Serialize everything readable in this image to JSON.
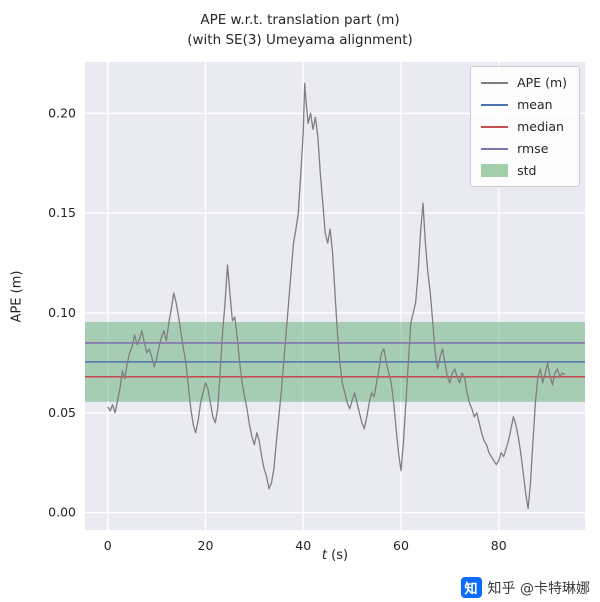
{
  "figure": {
    "title_line1": "APE w.r.t. translation part (m)",
    "title_line2": "(with SE(3) Umeyama alignment)",
    "ylabel": "APE (m)",
    "xlabel_var": "t",
    "xlabel_unit": " (s)"
  },
  "legend": {
    "entries": [
      {
        "label": "APE (m)",
        "swatch": "line",
        "color": "#7f7f7f"
      },
      {
        "label": "mean",
        "swatch": "line",
        "color": "#4c72b0"
      },
      {
        "label": "median",
        "swatch": "line",
        "color": "#c44e52"
      },
      {
        "label": "rmse",
        "swatch": "line",
        "color": "#8172b2"
      },
      {
        "label": "std",
        "swatch": "patch",
        "color": "#55a868"
      }
    ]
  },
  "watermark": {
    "logo_glyph": "知",
    "text": "知乎 @卡特琳娜",
    "logo_color": "#0a6cff"
  },
  "chart_data": {
    "type": "line",
    "title": "APE w.r.t. translation part (m)\n(with SE(3) Umeyama alignment)",
    "xlabel": "t (s)",
    "ylabel": "APE (m)",
    "xlim": [
      -4.65,
      97.65
    ],
    "ylim": [
      -0.0087,
      0.2257
    ],
    "xticks": [
      0,
      20,
      40,
      60,
      80
    ],
    "xtick_labels": [
      "0",
      "20",
      "40",
      "60",
      "80"
    ],
    "yticks": [
      0.0,
      0.05,
      0.1,
      0.15,
      0.2
    ],
    "ytick_labels": [
      "0.00",
      "0.05",
      "0.10",
      "0.15",
      "0.20"
    ],
    "grid": true,
    "plot_bg": "#eaeaf2",
    "grid_color": "#ffffff",
    "legend_position": "upper right",
    "stats": {
      "mean": 0.0755,
      "median": 0.068,
      "rmse": 0.085,
      "std": 0.02
    },
    "std_band": {
      "low": 0.0555,
      "high": 0.0955,
      "color": "#55a868",
      "opacity": 0.45
    },
    "hlines": [
      {
        "name": "rmse",
        "y": 0.085,
        "color": "#8172b2"
      },
      {
        "name": "mean",
        "y": 0.0755,
        "color": "#4c72b0"
      },
      {
        "name": "median",
        "y": 0.068,
        "color": "#c44e52"
      }
    ],
    "series": [
      {
        "name": "APE (m)",
        "color": "#7f7f7f",
        "x": [
          0,
          0.5,
          1,
          1.5,
          2,
          2.5,
          3,
          3.5,
          4,
          4.5,
          5,
          5.5,
          6,
          6.5,
          7,
          7.5,
          8,
          8.5,
          9,
          9.5,
          10,
          10.5,
          11,
          11.5,
          12,
          12.5,
          13,
          13.5,
          14,
          14.5,
          15,
          15.5,
          16,
          16.5,
          17,
          17.5,
          18,
          18.5,
          19,
          19.5,
          20,
          20.5,
          21,
          21.5,
          22,
          22.5,
          23,
          23.5,
          24,
          24.5,
          25,
          25.5,
          26,
          26.5,
          27,
          27.5,
          28,
          28.5,
          29,
          29.5,
          30,
          30.5,
          31,
          31.5,
          32,
          32.5,
          33,
          33.5,
          34,
          34.5,
          35,
          35.5,
          36,
          36.5,
          37,
          37.5,
          38,
          38.5,
          39,
          39.5,
          40,
          40.3,
          40.6,
          41,
          41.5,
          42,
          42.5,
          43,
          43.5,
          44,
          44.5,
          45,
          45.5,
          46,
          46.5,
          47,
          47.5,
          48,
          48.5,
          49,
          49.5,
          50,
          50.5,
          51,
          51.5,
          52,
          52.5,
          53,
          53.5,
          54,
          54.5,
          55,
          55.5,
          56,
          56.5,
          57,
          57.5,
          58,
          58.5,
          59,
          59.5,
          60,
          60.5,
          61,
          61.5,
          62,
          62.5,
          63,
          63.5,
          64,
          64.5,
          65,
          65.5,
          66,
          66.5,
          67,
          67.5,
          68,
          68.5,
          69,
          69.5,
          70,
          70.5,
          71,
          71.5,
          72,
          72.5,
          73,
          73.5,
          74,
          74.5,
          75,
          75.5,
          76,
          76.5,
          77,
          77.5,
          78,
          78.5,
          79,
          79.5,
          80,
          80.5,
          81,
          81.5,
          82,
          82.5,
          83,
          83.5,
          84,
          84.5,
          85,
          85.5,
          86,
          86.5,
          87,
          87.5,
          88,
          88.5,
          89,
          89.5,
          90,
          90.5,
          91,
          91.5,
          92,
          92.5,
          93,
          93.5
        ],
        "y": [
          0.053,
          0.051,
          0.054,
          0.05,
          0.056,
          0.062,
          0.071,
          0.067,
          0.075,
          0.08,
          0.083,
          0.089,
          0.084,
          0.087,
          0.091,
          0.085,
          0.08,
          0.082,
          0.078,
          0.073,
          0.077,
          0.083,
          0.088,
          0.091,
          0.086,
          0.095,
          0.102,
          0.11,
          0.105,
          0.098,
          0.09,
          0.082,
          0.075,
          0.063,
          0.052,
          0.044,
          0.04,
          0.046,
          0.055,
          0.06,
          0.065,
          0.062,
          0.055,
          0.048,
          0.045,
          0.052,
          0.07,
          0.09,
          0.105,
          0.124,
          0.11,
          0.096,
          0.098,
          0.088,
          0.075,
          0.065,
          0.058,
          0.052,
          0.044,
          0.038,
          0.034,
          0.04,
          0.036,
          0.028,
          0.022,
          0.018,
          0.012,
          0.015,
          0.022,
          0.035,
          0.048,
          0.06,
          0.075,
          0.09,
          0.105,
          0.12,
          0.135,
          0.142,
          0.15,
          0.17,
          0.19,
          0.215,
          0.205,
          0.195,
          0.2,
          0.192,
          0.198,
          0.188,
          0.17,
          0.155,
          0.14,
          0.135,
          0.142,
          0.13,
          0.11,
          0.09,
          0.075,
          0.065,
          0.06,
          0.055,
          0.052,
          0.056,
          0.06,
          0.055,
          0.05,
          0.045,
          0.042,
          0.048,
          0.055,
          0.06,
          0.058,
          0.065,
          0.072,
          0.08,
          0.082,
          0.075,
          0.07,
          0.065,
          0.055,
          0.042,
          0.03,
          0.021,
          0.035,
          0.055,
          0.075,
          0.095,
          0.1,
          0.105,
          0.12,
          0.14,
          0.155,
          0.135,
          0.12,
          0.11,
          0.095,
          0.08,
          0.072,
          0.078,
          0.082,
          0.075,
          0.068,
          0.065,
          0.07,
          0.072,
          0.068,
          0.065,
          0.07,
          0.068,
          0.06,
          0.055,
          0.052,
          0.048,
          0.05,
          0.045,
          0.04,
          0.036,
          0.034,
          0.03,
          0.028,
          0.026,
          0.024,
          0.026,
          0.03,
          0.028,
          0.032,
          0.036,
          0.042,
          0.048,
          0.044,
          0.038,
          0.03,
          0.02,
          0.01,
          0.002,
          0.015,
          0.035,
          0.055,
          0.068,
          0.072,
          0.065,
          0.07,
          0.075,
          0.068,
          0.064,
          0.07,
          0.072,
          0.068,
          0.07,
          0.069
        ]
      }
    ]
  }
}
